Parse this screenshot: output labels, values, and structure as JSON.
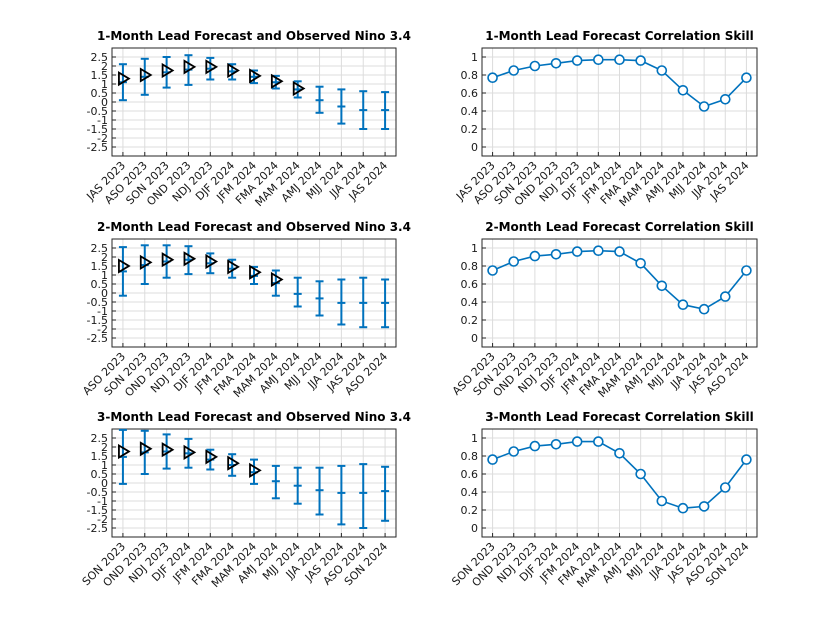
{
  "colors": {
    "series": "#0072bd",
    "observed": "#000000",
    "grid": "#dcdcdc",
    "axis": "#262626"
  },
  "chart_data": [
    {
      "type": "errorbar",
      "title": "1-Month Lead Forecast and Observed Nino 3.4",
      "categories": [
        "JAS 2023",
        "ASO 2023",
        "SON 2023",
        "OND 2023",
        "NDJ 2023",
        "DJF 2024",
        "JFM 2024",
        "FMA 2024",
        "MAM 2024",
        "AMJ 2024",
        "MJJ 2024",
        "JJA 2024",
        "JAS 2024"
      ],
      "yticks": [
        "2.5",
        "2",
        "1.5",
        "1",
        "0.5",
        "0",
        "-0.5",
        "-1",
        "-1.5",
        "-2",
        "-2.5"
      ],
      "ylim": [
        -3,
        3
      ],
      "grid": true,
      "series": [
        {
          "values": [
            1.1,
            1.4,
            1.65,
            1.8,
            1.85,
            1.7,
            1.4,
            1.1,
            0.7,
            0.1,
            -0.25,
            -0.45,
            -0.45
          ],
          "lower": [
            0.1,
            0.4,
            0.8,
            0.95,
            1.25,
            1.25,
            1.05,
            0.75,
            0.25,
            -0.6,
            -1.2,
            -1.5,
            -1.5
          ],
          "upper": [
            2.1,
            2.4,
            2.5,
            2.6,
            2.45,
            2.1,
            1.75,
            1.45,
            1.15,
            0.85,
            0.7,
            0.6,
            0.55
          ]
        },
        {
          "values": [
            1.3,
            1.5,
            1.75,
            1.95,
            1.95,
            1.75,
            1.45,
            1.15,
            0.75,
            null,
            null,
            null,
            null
          ]
        }
      ]
    },
    {
      "type": "line",
      "title": "1-Month Lead Forecast Correlation Skill",
      "categories": [
        "JAS 2023",
        "ASO 2023",
        "SON 2023",
        "OND 2023",
        "NDJ 2023",
        "DJF 2024",
        "JFM 2024",
        "FMA 2024",
        "MAM 2024",
        "AMJ 2024",
        "MJJ 2024",
        "JJA 2024",
        "JAS 2024"
      ],
      "values": [
        0.77,
        0.85,
        0.9,
        0.93,
        0.96,
        0.97,
        0.97,
        0.96,
        0.85,
        0.63,
        0.45,
        0.53,
        0.77
      ],
      "yticks": [
        "1",
        "0.8",
        "0.6",
        "0.4",
        "0.2",
        "0"
      ],
      "ylim": [
        -0.1,
        1.1
      ],
      "grid": true
    },
    {
      "type": "errorbar",
      "title": "2-Month Lead Forecast and Observed Nino 3.4",
      "categories": [
        "ASO 2023",
        "SON 2023",
        "OND 2023",
        "NDJ 2023",
        "DJF 2024",
        "JFM 2024",
        "FMA 2024",
        "MAM 2024",
        "AMJ 2024",
        "MJJ 2024",
        "JJA 2024",
        "JAS 2024",
        "ASO 2024"
      ],
      "yticks": [
        "2.5",
        "2",
        "1.5",
        "1",
        "0.5",
        "0",
        "-0.5",
        "-1",
        "-1.5",
        "-2",
        "-2.5"
      ],
      "ylim": [
        -3,
        3
      ],
      "grid": true,
      "series": [
        {
          "values": [
            1.2,
            1.55,
            1.75,
            1.85,
            1.65,
            1.35,
            0.95,
            0.55,
            -0.05,
            -0.3,
            -0.55,
            -0.55,
            -0.55
          ],
          "lower": [
            -0.15,
            0.5,
            0.85,
            1.05,
            1.1,
            0.85,
            0.5,
            -0.15,
            -0.75,
            -1.25,
            -1.75,
            -1.9,
            -1.9
          ],
          "upper": [
            2.55,
            2.65,
            2.65,
            2.6,
            2.2,
            1.85,
            1.45,
            1.25,
            0.85,
            0.65,
            0.75,
            0.85,
            0.75
          ]
        },
        {
          "values": [
            1.5,
            1.7,
            1.85,
            1.9,
            1.75,
            1.45,
            1.15,
            0.75,
            null,
            null,
            null,
            null,
            null
          ]
        }
      ]
    },
    {
      "type": "line",
      "title": "2-Month Lead Forecast Correlation Skill",
      "categories": [
        "ASO 2023",
        "SON 2023",
        "OND 2023",
        "NDJ 2023",
        "DJF 2024",
        "JFM 2024",
        "FMA 2024",
        "MAM 2024",
        "AMJ 2024",
        "MJJ 2024",
        "JJA 2024",
        "JAS 2024",
        "ASO 2024"
      ],
      "values": [
        0.75,
        0.85,
        0.91,
        0.93,
        0.96,
        0.97,
        0.96,
        0.83,
        0.58,
        0.37,
        0.32,
        0.46,
        0.75
      ],
      "yticks": [
        "1",
        "0.8",
        "0.6",
        "0.4",
        "0.2",
        "0"
      ],
      "ylim": [
        -0.1,
        1.1
      ],
      "grid": true
    },
    {
      "type": "errorbar",
      "title": "3-Month Lead Forecast and Observed Nino 3.4",
      "categories": [
        "SON 2023",
        "OND 2023",
        "NDJ 2023",
        "DJF 2024",
        "JFM 2024",
        "FMA 2024",
        "MAM 2024",
        "AMJ 2024",
        "MJJ 2024",
        "JJA 2024",
        "JAS 2024",
        "ASO 2024",
        "SON 2024"
      ],
      "yticks": [
        "2.5",
        "2",
        "1.5",
        "1",
        "0.5",
        "0",
        "-0.5",
        "-1",
        "-1.5",
        "-2",
        "-2.5"
      ],
      "ylim": [
        -3,
        3
      ],
      "grid": true,
      "series": [
        {
          "values": [
            1.45,
            1.7,
            1.75,
            1.65,
            1.3,
            1.0,
            0.6,
            0.1,
            -0.15,
            -0.4,
            -0.55,
            -0.55,
            -0.45
          ],
          "lower": [
            -0.05,
            0.5,
            0.8,
            0.85,
            0.75,
            0.4,
            -0.05,
            -0.85,
            -1.15,
            -1.75,
            -2.3,
            -2.5,
            -2.1
          ],
          "upper": [
            2.95,
            2.9,
            2.7,
            2.45,
            1.85,
            1.6,
            1.3,
            0.95,
            0.85,
            0.85,
            0.95,
            1.05,
            0.9
          ]
        },
        {
          "values": [
            1.75,
            1.9,
            1.85,
            1.7,
            1.45,
            1.1,
            0.7,
            null,
            null,
            null,
            null,
            null,
            null
          ]
        }
      ]
    },
    {
      "type": "line",
      "title": "3-Month Lead Forecast Correlation Skill",
      "categories": [
        "SON 2023",
        "OND 2023",
        "NDJ 2023",
        "DJF 2024",
        "JFM 2024",
        "FMA 2024",
        "MAM 2024",
        "AMJ 2024",
        "MJJ 2024",
        "JJA 2024",
        "JAS 2024",
        "ASO 2024",
        "SON 2024"
      ],
      "values": [
        0.76,
        0.85,
        0.91,
        0.93,
        0.96,
        0.96,
        0.83,
        0.6,
        0.3,
        0.22,
        0.24,
        0.45,
        0.76
      ],
      "yticks": [
        "1",
        "0.8",
        "0.6",
        "0.4",
        "0.2",
        "0"
      ],
      "ylim": [
        -0.1,
        1.1
      ],
      "grid": true
    }
  ]
}
